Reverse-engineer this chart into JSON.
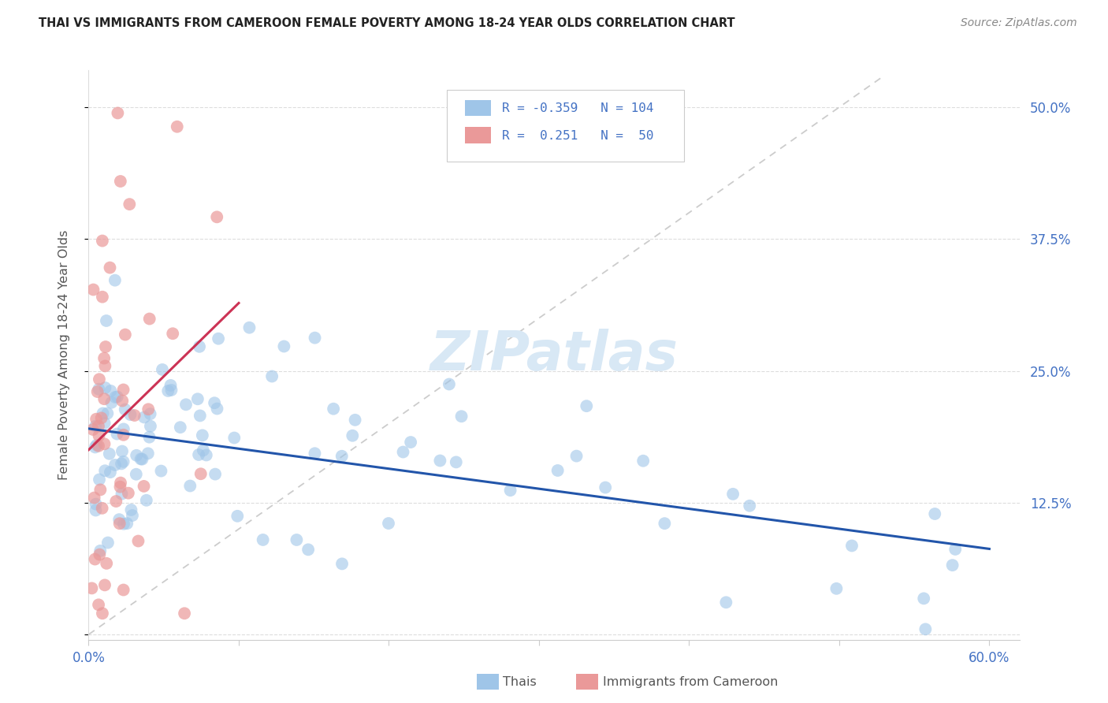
{
  "title": "THAI VS IMMIGRANTS FROM CAMEROON FEMALE POVERTY AMONG 18-24 YEAR OLDS CORRELATION CHART",
  "source": "Source: ZipAtlas.com",
  "ylabel": "Female Poverty Among 18-24 Year Olds",
  "ytick_values": [
    0.0,
    0.125,
    0.25,
    0.375,
    0.5
  ],
  "ytick_labels_right": [
    "",
    "12.5%",
    "25.0%",
    "37.5%",
    "50.0%"
  ],
  "xtick_positions": [
    0.0,
    0.1,
    0.2,
    0.3,
    0.4,
    0.5,
    0.6
  ],
  "xtick_labels": [
    "0.0%",
    "",
    "",
    "",
    "",
    "",
    "60.0%"
  ],
  "xlim": [
    0.0,
    0.62
  ],
  "ylim": [
    -0.005,
    0.535
  ],
  "title_color": "#222222",
  "source_color": "#888888",
  "ylabel_color": "#555555",
  "axis_tick_color": "#4472C4",
  "blue_scatter_color": "#9FC5E8",
  "pink_scatter_color": "#EA9999",
  "blue_line_color": "#2255AA",
  "pink_line_color": "#CC3355",
  "diagonal_color": "#CCCCCC",
  "grid_color": "#DDDDDD",
  "legend_border_color": "#CCCCCC",
  "legend_text_color": "#4472C4",
  "watermark_color": "#D8E8F5",
  "r_thai": -0.359,
  "n_thai": 104,
  "r_cameroon": 0.251,
  "n_cameroon": 50
}
